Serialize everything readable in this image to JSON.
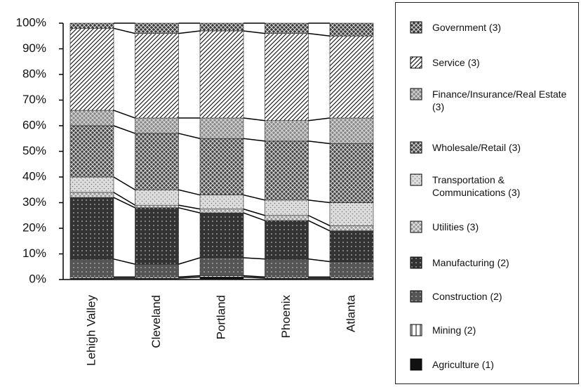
{
  "chart_data": {
    "type": "stacked_bar_100",
    "categories": [
      "Lehigh Valley",
      "Cleveland",
      "Portland",
      "Phoenix",
      "Atlanta"
    ],
    "series": [
      {
        "name": "Agriculture (1)",
        "color": "#111111",
        "values": [
          0.5,
          0.5,
          1,
          0.5,
          0.5
        ]
      },
      {
        "name": "Mining (2)",
        "color": "#ffffff",
        "values": [
          0.5,
          0.5,
          0.5,
          0.5,
          0.5
        ]
      },
      {
        "name": "Construction (2)",
        "color": "#555555",
        "values": [
          7,
          5,
          7,
          7,
          6
        ]
      },
      {
        "name": "Manufacturing (2)",
        "color": "#333333",
        "values": [
          24,
          22,
          17.5,
          15,
          12
        ]
      },
      {
        "name": "Utilities (3)",
        "color": "#999999",
        "values": [
          2,
          1,
          1.5,
          2,
          2
        ]
      },
      {
        "name": "Transportation & Communications (3)",
        "color": "#dddddd",
        "values": [
          6,
          6,
          5.5,
          6,
          9
        ]
      },
      {
        "name": "Wholesale/Retail (3)",
        "color": "#444444",
        "values": [
          20,
          22,
          22,
          23,
          23
        ]
      },
      {
        "name": "Finance/Insurance/Real Estate (3)",
        "color": "#888888",
        "values": [
          6,
          6,
          8,
          8,
          10
        ]
      },
      {
        "name": "Service (3)",
        "color": "#ffffff",
        "values": [
          32,
          33,
          34,
          34,
          32
        ]
      },
      {
        "name": "Government (3)",
        "color": "#3a3a3a",
        "values": [
          2,
          4,
          3,
          4,
          5
        ]
      }
    ],
    "ylim": [
      0,
      100
    ],
    "yticks": [
      {
        "value": 0,
        "label": "0%"
      },
      {
        "value": 10,
        "label": "10%"
      },
      {
        "value": 20,
        "label": "20%"
      },
      {
        "value": 30,
        "label": "30%"
      },
      {
        "value": 40,
        "label": "40%"
      },
      {
        "value": 50,
        "label": "50%"
      },
      {
        "value": 60,
        "label": "60%"
      },
      {
        "value": 70,
        "label": "70%"
      },
      {
        "value": 80,
        "label": "80%"
      },
      {
        "value": 90,
        "label": "90%"
      },
      {
        "value": 100,
        "label": "100%"
      }
    ],
    "legend": "right"
  }
}
